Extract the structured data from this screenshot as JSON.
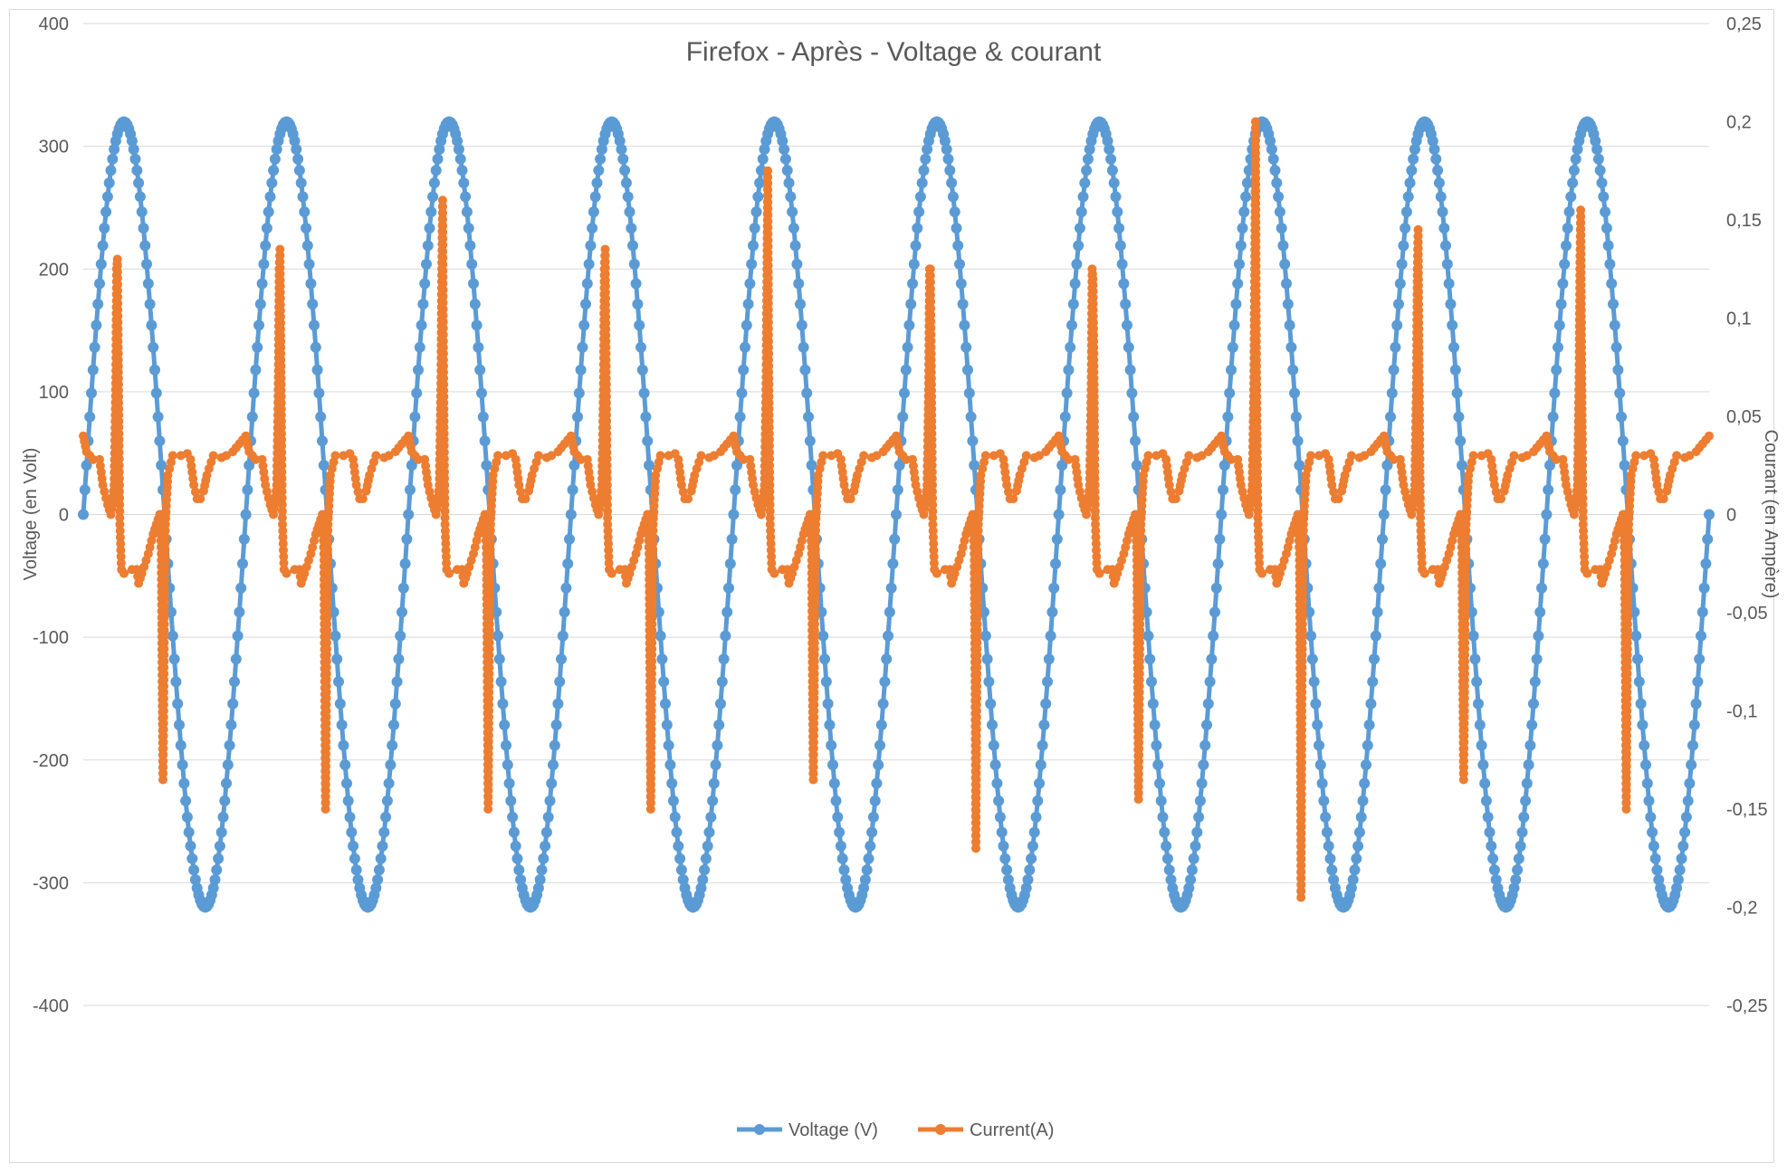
{
  "chart_data": {
    "type": "line",
    "title": "Firefox - Après - Voltage & courant",
    "ylabel": "Voltage (en Volt)",
    "y2label": "Courant (en Ampère)",
    "xlabel": "",
    "ylim": [
      -400,
      400
    ],
    "y2lim": [
      -0.25,
      0.25
    ],
    "yticks": [
      "400",
      "300",
      "200",
      "100",
      "0",
      "-100",
      "-200",
      "-300",
      "-400"
    ],
    "y2ticks": [
      "0,25",
      "0,2",
      "0,15",
      "0,1",
      "0,05",
      "0",
      "-0,05",
      "-0,1",
      "-0,15",
      "-0,2",
      "-0,25"
    ],
    "grid": true,
    "legend_position": "bottom",
    "x_range": [
      0,
      1000
    ],
    "series": [
      {
        "name": "Voltage (V)",
        "axis": "left",
        "color": "#5b9bd5",
        "marker": "circle",
        "amplitude": 320,
        "cycles": 10,
        "phase_start": "zero-crossing-rising"
      },
      {
        "name": "Current(A)",
        "axis": "right",
        "color": "#ed7d31",
        "marker": "circle",
        "cycles": 10,
        "positive_peaks": [
          0.13,
          0.135,
          0.16,
          0.135,
          0.175,
          0.125,
          0.12,
          0.2,
          0.145,
          0.155
        ],
        "negative_peaks": [
          -0.135,
          -0.15,
          -0.15,
          -0.15,
          -0.135,
          -0.17,
          -0.145,
          -0.195,
          -0.135,
          -0.15
        ],
        "plateau_high": 0.03,
        "plateau_low": -0.028
      }
    ]
  }
}
